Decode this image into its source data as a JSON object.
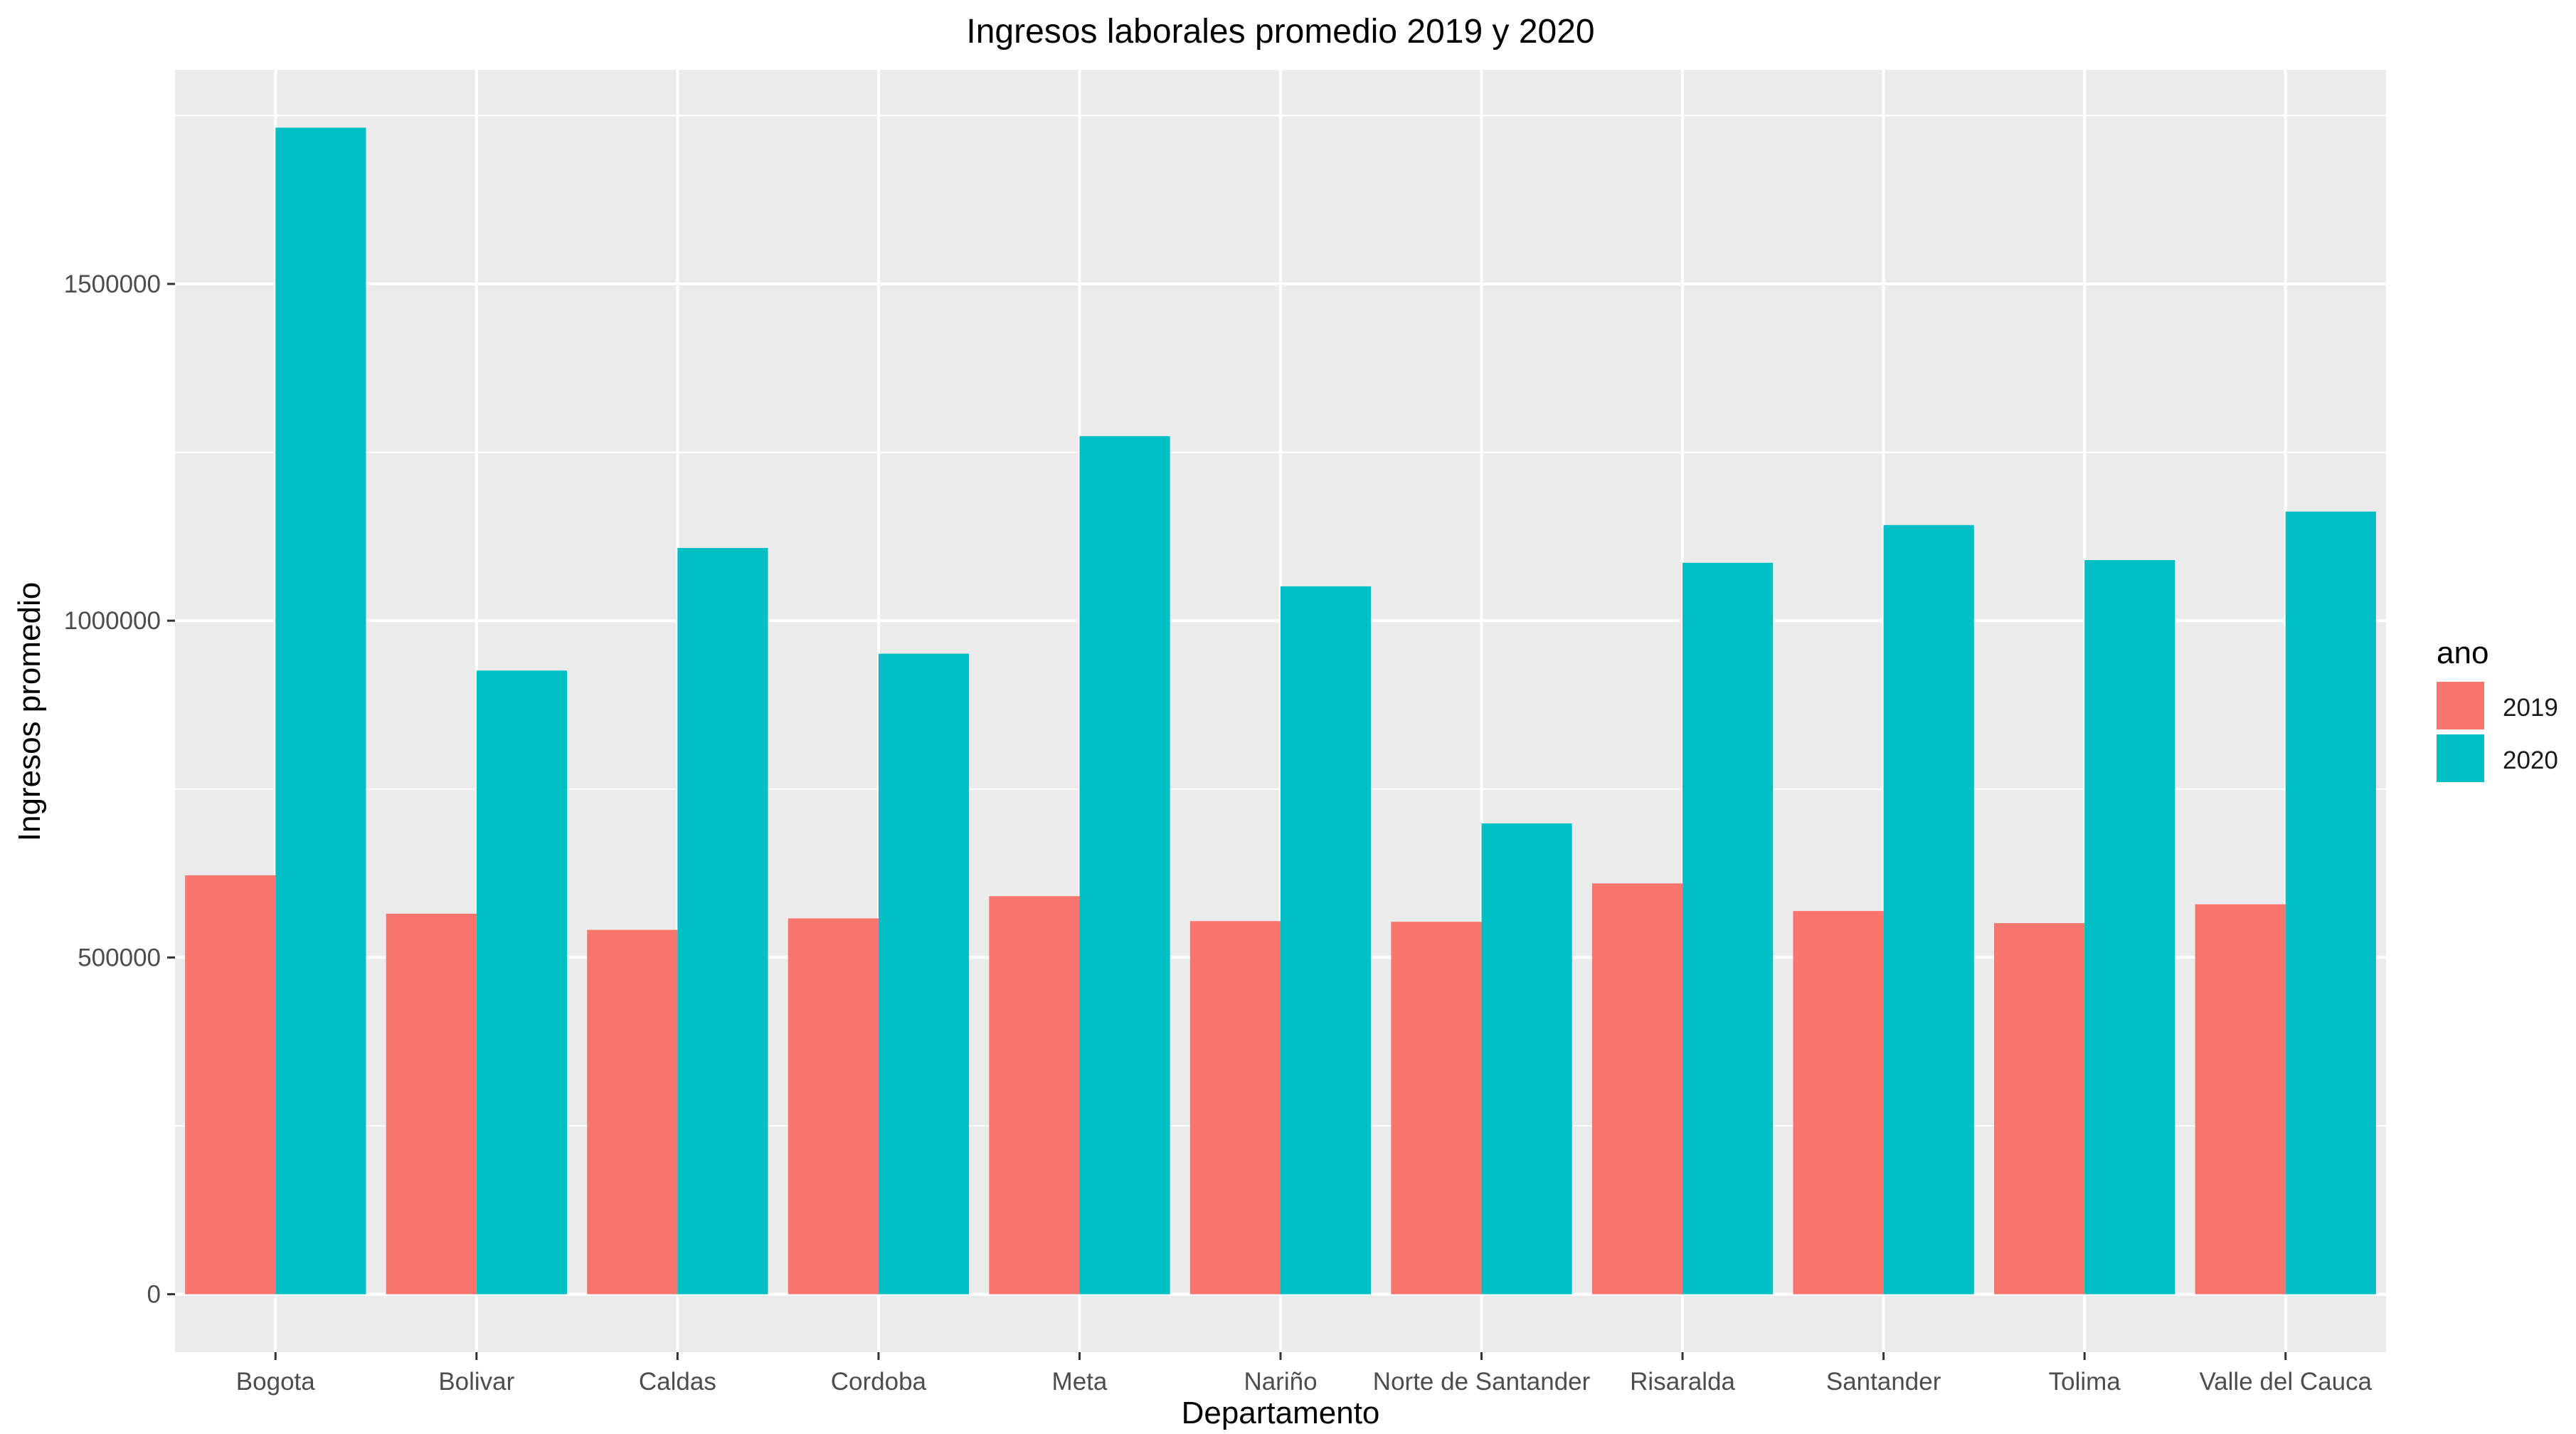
{
  "chart_data": {
    "type": "bar",
    "title": "Ingresos laborales promedio 2019 y 2020",
    "xlabel": "Departamento",
    "ylabel": "Ingresos promedio",
    "categories": [
      "Bogota",
      "Bolivar",
      "Caldas",
      "Cordoba",
      "Meta",
      "Nariño",
      "Norte de Santander",
      "Risaralda",
      "Santander",
      "Tolima",
      "Valle del Cauca"
    ],
    "series": [
      {
        "name": "2019",
        "color": "#F8766D",
        "values": [
          622000,
          565000,
          541000,
          558000,
          591000,
          554000,
          553000,
          610000,
          569000,
          551000,
          579000
        ]
      },
      {
        "name": "2020",
        "color": "#00BFC4",
        "values": [
          1732000,
          926000,
          1108000,
          951000,
          1274000,
          1051000,
          699000,
          1086000,
          1142000,
          1090000,
          1162000
        ]
      }
    ],
    "yticks": [
      0,
      500000,
      1000000,
      1500000
    ],
    "ytick_labels": [
      "0",
      "500000",
      "1000000",
      "1500000"
    ],
    "ylim": [
      -86000,
      1818000
    ],
    "grid": true,
    "panel_background": "#EBEBEB",
    "grid_color": "#FFFFFF",
    "legend": {
      "title": "ano",
      "position": "right",
      "entries": [
        "2019",
        "2020"
      ]
    }
  }
}
